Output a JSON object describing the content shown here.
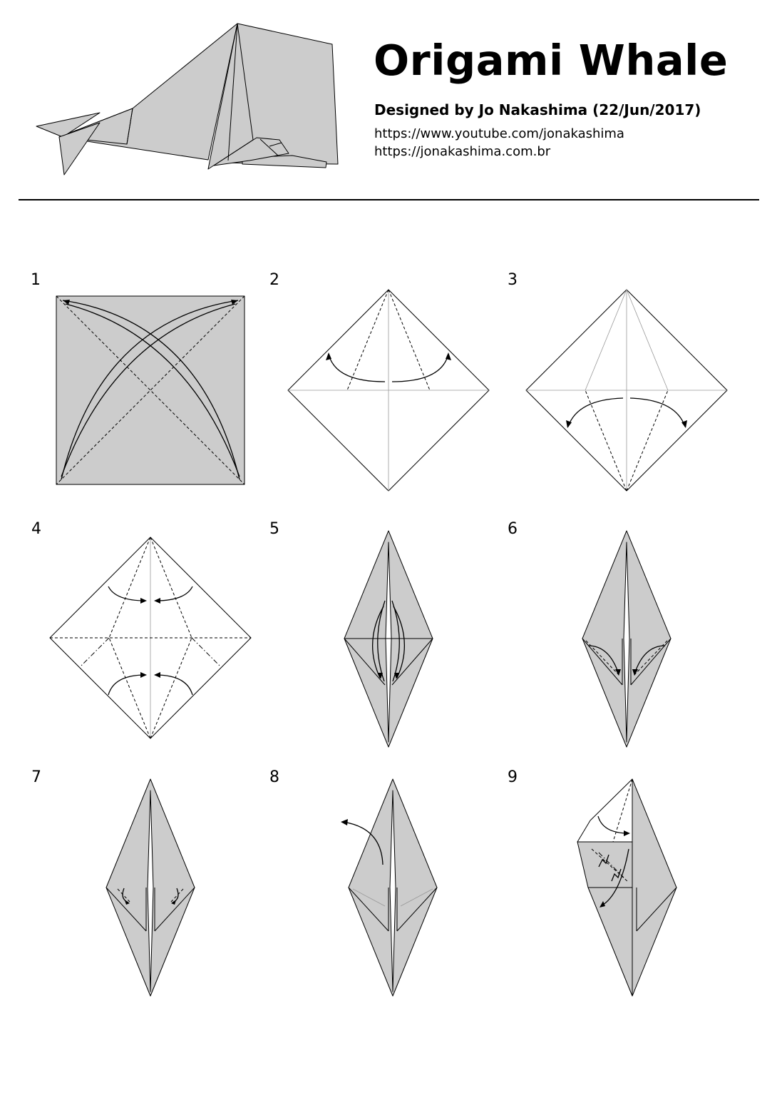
{
  "header": {
    "title": "Origami Whale",
    "byline": "Designed by Jo Nakashima (22/Jun/2017)",
    "links": [
      "https://www.youtube.com/jonakashima",
      "https://jonakashima.com.br"
    ]
  },
  "colors": {
    "paper": "#cccccc",
    "reverse_side": "#ffffff",
    "lines": "#000000"
  },
  "icons": [
    "origami-whale-illustration",
    "fold-arrow-icon",
    "valley-fold-line",
    "mountain-fold-line"
  ],
  "steps": [
    {
      "number": "1"
    },
    {
      "number": "2"
    },
    {
      "number": "3"
    },
    {
      "number": "4"
    },
    {
      "number": "5"
    },
    {
      "number": "6"
    },
    {
      "number": "7"
    },
    {
      "number": "8"
    },
    {
      "number": "9"
    }
  ]
}
